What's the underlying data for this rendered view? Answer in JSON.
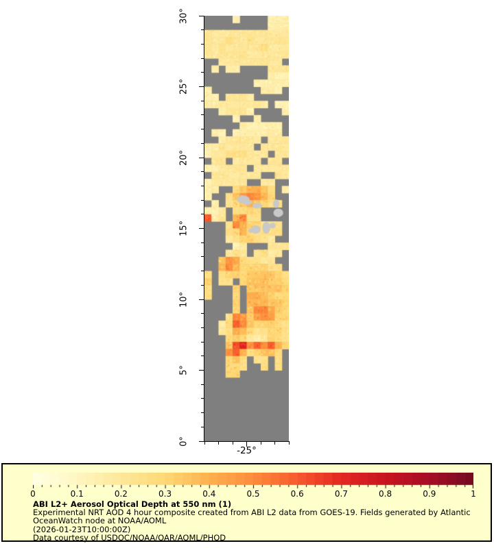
{
  "figure": {
    "background": "#ffffff"
  },
  "map_axes": {
    "lat_range": [
      0,
      30
    ],
    "lon_range": [
      -28,
      -22
    ],
    "lat_minor_step_deg": 1,
    "lon_minor_step_deg": 1,
    "lat_tick_labels": [
      {
        "lat": 30,
        "label": "30°"
      },
      {
        "lat": 25,
        "label": "25°"
      },
      {
        "lat": 20,
        "label": "20°"
      },
      {
        "lat": 15,
        "label": "15°"
      },
      {
        "lat": 10,
        "label": "10°"
      },
      {
        "lat": 5,
        "label": "5°"
      },
      {
        "lat": 0,
        "label": "0°"
      }
    ],
    "lon_tick_labels": [
      {
        "lon": -25,
        "label": "-25°"
      }
    ]
  },
  "chart_data": {
    "type": "heatmap",
    "title": "ABI L2+ Aerosol Optical Depth at 550 nm (1)",
    "quantity": "Aerosol Optical Depth at 550 nm",
    "lat_range": [
      0,
      30
    ],
    "lon_range": [
      -28,
      -22
    ],
    "no_data_color": "#7f7f7f",
    "land_color": "#c9c9c9",
    "colormap": {
      "stops": [
        [
          0.0,
          "#ffffe5"
        ],
        [
          0.1,
          "#fff7c0"
        ],
        [
          0.2,
          "#fee79a"
        ],
        [
          0.3,
          "#fed976"
        ],
        [
          0.4,
          "#fdb14e"
        ],
        [
          0.5,
          "#fd8c3c"
        ],
        [
          0.6,
          "#f75a2d"
        ],
        [
          0.7,
          "#e32722"
        ],
        [
          0.8,
          "#c81422"
        ],
        [
          0.9,
          "#a50d24"
        ],
        [
          1.0,
          "#720a21"
        ]
      ]
    },
    "colorbar": {
      "min": 0,
      "max": 1,
      "major_tick_labels": [
        "0",
        "0.1",
        "0.2",
        "0.3",
        "0.4",
        "0.5",
        "0.6",
        "0.7",
        "0.8",
        "0.9",
        "1"
      ],
      "minor_tick_step": 0.02
    },
    "aod_grid": {
      "comment": "AOD values on 0.5 deg cells; rows from lat 30 down to 0, cols from lon -28 to -22; null = no data (gray)",
      "lat_start": 30,
      "lat_step": -0.5,
      "lon_start": -28,
      "lon_step": 0.5,
      "values": [
        [
          null,
          null,
          null,
          null,
          0.15,
          null,
          null,
          null,
          null,
          0.15,
          0.15,
          0.15
        ],
        [
          null,
          null,
          null,
          null,
          null,
          null,
          null,
          null,
          null,
          0.15,
          0.15,
          0.15
        ],
        [
          0.2,
          0.2,
          0.2,
          0.2,
          0.2,
          0.2,
          0.2,
          0.2,
          0.2,
          0.2,
          0.2,
          0.2
        ],
        [
          0.2,
          0.2,
          0.2,
          0.25,
          0.2,
          0.2,
          0.25,
          0.2,
          0.2,
          0.2,
          0.2,
          0.2
        ],
        [
          0.2,
          0.2,
          0.25,
          0.2,
          0.2,
          0.2,
          0.2,
          0.2,
          0.25,
          0.2,
          0.2,
          0.2
        ],
        [
          0.2,
          0.2,
          0.2,
          0.2,
          0.2,
          0.25,
          0.2,
          0.2,
          0.2,
          0.2,
          0.2,
          0.2
        ],
        [
          null,
          null,
          0.2,
          0.2,
          0.2,
          0.2,
          0.2,
          0.2,
          0.2,
          0.2,
          0.2,
          null
        ],
        [
          null,
          0.15,
          null,
          0.15,
          0.15,
          null,
          null,
          null,
          null,
          0.2,
          0.2,
          0.2
        ],
        [
          null,
          null,
          null,
          null,
          null,
          null,
          null,
          null,
          null,
          0.15,
          0.15,
          0.15
        ],
        [
          null,
          null,
          null,
          null,
          null,
          null,
          null,
          0.15,
          0.15,
          0.15,
          0.15,
          0.15
        ],
        [
          0.15,
          null,
          null,
          null,
          null,
          null,
          null,
          null,
          0.15,
          0.15,
          0.15,
          null
        ],
        [
          0.15,
          0.15,
          null,
          0.2,
          0.2,
          0.2,
          0.2,
          null,
          null,
          null,
          null,
          null
        ],
        [
          0.15,
          0.15,
          0.2,
          0.2,
          0.2,
          0.2,
          0.2,
          0.2,
          0.15,
          null,
          0.15,
          0.15
        ],
        [
          null,
          null,
          0.15,
          0.2,
          0.2,
          0.2,
          0.15,
          null,
          null,
          null,
          null,
          0.15
        ],
        [
          null,
          null,
          null,
          null,
          0.15,
          null,
          null,
          0.15,
          null,
          null,
          null,
          null
        ],
        [
          null,
          null,
          null,
          null,
          null,
          0.15,
          0.15,
          0.15,
          0.15,
          0.15,
          0.15,
          null
        ],
        [
          null,
          0.15,
          0.15,
          null,
          0.15,
          0.15,
          0.15,
          0.15,
          0.15,
          0.15,
          0.15,
          null
        ],
        [
          null,
          null,
          0.15,
          0.2,
          0.2,
          0.2,
          0.2,
          0.2,
          null,
          0.2,
          0.2,
          0.2
        ],
        [
          0.15,
          0.15,
          0.2,
          0.2,
          0.2,
          0.2,
          0.2,
          null,
          0.2,
          0.2,
          0.2,
          0.2
        ],
        [
          0.15,
          0.2,
          0.2,
          0.25,
          0.25,
          0.25,
          0.2,
          0.2,
          0.2,
          null,
          0.2,
          0.2
        ],
        [
          null,
          0.2,
          0.2,
          null,
          0.2,
          0.2,
          0.2,
          0.2,
          null,
          0.2,
          0.2,
          null
        ],
        [
          0.15,
          0.15,
          0.2,
          0.2,
          0.2,
          0.2,
          null,
          0.2,
          0.2,
          0.2,
          0.2,
          0.2
        ],
        [
          null,
          0.2,
          0.2,
          0.2,
          0.2,
          0.2,
          0.2,
          0.2,
          null,
          null,
          0.2,
          0.2
        ],
        [
          0.15,
          0.2,
          0.2,
          0.2,
          0.2,
          0.2,
          null,
          null,
          0.2,
          0.2,
          null,
          null
        ],
        [
          0.15,
          0.15,
          null,
          null,
          0.3,
          0.35,
          0.4,
          0.4,
          0.35,
          0.25,
          null,
          0.15
        ],
        [
          0.15,
          null,
          null,
          0.25,
          0.35,
          0.45,
          0.5,
          0.45,
          0.4,
          0.3,
          null,
          null
        ],
        [
          null,
          0.15,
          null,
          0.2,
          0.3,
          0.35,
          0.4,
          0.35,
          0.3,
          0.25,
          0.25,
          null
        ],
        [
          0.15,
          0.15,
          0.2,
          null,
          0.25,
          0.25,
          0.3,
          0.25,
          null,
          null,
          null,
          null
        ],
        [
          0.6,
          0.15,
          0.2,
          null,
          0.4,
          0.5,
          0.25,
          0.25,
          null,
          null,
          null,
          null
        ],
        [
          null,
          null,
          null,
          0.25,
          0.5,
          0.4,
          0.3,
          0.3,
          0.25,
          0.25,
          0.25,
          null
        ],
        [
          null,
          null,
          null,
          0.25,
          0.3,
          0.4,
          0.3,
          0.25,
          0.25,
          0.25,
          0.25,
          null
        ],
        [
          null,
          null,
          null,
          0.2,
          0.25,
          0.3,
          0.3,
          0.25,
          0.25,
          0.2,
          null,
          null
        ],
        [
          null,
          null,
          null,
          null,
          0.15,
          0.2,
          null,
          null,
          null,
          0.2,
          0.2,
          0.2
        ],
        [
          null,
          null,
          null,
          0.2,
          0.25,
          0.2,
          null,
          0.2,
          0.25,
          0.2,
          0.2,
          null
        ],
        [
          null,
          null,
          0.35,
          0.45,
          0.4,
          0.3,
          0.25,
          0.25,
          0.2,
          0.2,
          null,
          null
        ],
        [
          null,
          null,
          0.4,
          0.5,
          0.4,
          0.3,
          0.3,
          0.3,
          0.3,
          0.25,
          0.25,
          null
        ],
        [
          0.25,
          null,
          0.25,
          0.3,
          0.3,
          0.3,
          0.35,
          0.35,
          0.35,
          0.35,
          0.3,
          0.25
        ],
        [
          0.3,
          null,
          0.25,
          0.25,
          null,
          0.3,
          0.35,
          0.35,
          0.35,
          0.35,
          0.35,
          0.3
        ],
        [
          0.25,
          null,
          null,
          null,
          0.3,
          null,
          0.35,
          0.35,
          0.35,
          0.35,
          0.35,
          0.3
        ],
        [
          0.25,
          null,
          null,
          null,
          0.3,
          null,
          0.4,
          0.4,
          0.35,
          0.35,
          0.3,
          0.3
        ],
        [
          null,
          null,
          null,
          null,
          0.3,
          null,
          0.4,
          0.4,
          0.4,
          0.35,
          0.35,
          0.3
        ],
        [
          null,
          null,
          null,
          null,
          0.3,
          null,
          0.35,
          0.5,
          0.5,
          0.4,
          0.35,
          0.3
        ],
        [
          null,
          null,
          null,
          0.25,
          0.5,
          0.45,
          0.35,
          0.45,
          0.5,
          0.45,
          0.3,
          0.3
        ],
        [
          null,
          null,
          0.2,
          0.3,
          0.6,
          0.5,
          0.35,
          0.3,
          0.3,
          0.3,
          0.3,
          0.25
        ],
        [
          null,
          null,
          0.2,
          0.25,
          0.4,
          0.35,
          0.3,
          0.25,
          0.25,
          0.3,
          0.3,
          0.25
        ],
        [
          null,
          null,
          null,
          0.3,
          0.35,
          0.3,
          0.2,
          0.15,
          0.2,
          0.3,
          0.3,
          0.25
        ],
        [
          null,
          null,
          null,
          0.35,
          0.6,
          0.7,
          0.5,
          0.6,
          0.5,
          0.6,
          0.4,
          0.3
        ],
        [
          null,
          null,
          null,
          0.5,
          0.6,
          0.4,
          0.25,
          0.3,
          0.35,
          0.35,
          0.3,
          null
        ],
        [
          null,
          null,
          null,
          0.3,
          0.35,
          0.25,
          null,
          0.25,
          0.25,
          null,
          0.25,
          null
        ],
        [
          null,
          null,
          null,
          0.3,
          0.3,
          0.25,
          null,
          null,
          0.25,
          null,
          0.25,
          null
        ],
        [
          null,
          null,
          null,
          0.3,
          0.3,
          null,
          null,
          null,
          null,
          null,
          null,
          null
        ],
        [
          null,
          null,
          null,
          null,
          null,
          null,
          null,
          null,
          null,
          null,
          null,
          null
        ],
        [
          null,
          null,
          null,
          null,
          null,
          null,
          null,
          null,
          null,
          null,
          null,
          null
        ],
        [
          null,
          null,
          null,
          null,
          null,
          null,
          null,
          null,
          null,
          null,
          null,
          null
        ],
        [
          null,
          null,
          null,
          null,
          null,
          null,
          null,
          null,
          null,
          null,
          null,
          null
        ],
        [
          null,
          null,
          null,
          null,
          null,
          null,
          null,
          null,
          null,
          null,
          null,
          null
        ],
        [
          null,
          null,
          null,
          null,
          null,
          null,
          null,
          null,
          null,
          null,
          null,
          null
        ],
        [
          null,
          null,
          null,
          null,
          null,
          null,
          null,
          null,
          null,
          null,
          null,
          null
        ],
        [
          null,
          null,
          null,
          null,
          null,
          null,
          null,
          null,
          null,
          null,
          null,
          null
        ],
        [
          null,
          null,
          null,
          null,
          null,
          null,
          null,
          null,
          null,
          null,
          null,
          null
        ]
      ]
    },
    "islands": [
      {
        "lat": 17.05,
        "lon": -25.25,
        "wdeg": 0.45,
        "hdeg": 0.28
      },
      {
        "lat": 16.85,
        "lon": -24.95,
        "wdeg": 0.3,
        "hdeg": 0.2
      },
      {
        "lat": 16.6,
        "lon": -24.25,
        "wdeg": 0.35,
        "hdeg": 0.2
      },
      {
        "lat": 16.75,
        "lon": -22.9,
        "wdeg": 0.22,
        "hdeg": 0.3
      },
      {
        "lat": 16.1,
        "lon": -22.75,
        "wdeg": 0.35,
        "hdeg": 0.3
      },
      {
        "lat": 15.2,
        "lon": -23.15,
        "wdeg": 0.2,
        "hdeg": 0.2
      },
      {
        "lat": 15.05,
        "lon": -23.6,
        "wdeg": 0.28,
        "hdeg": 0.42
      },
      {
        "lat": 14.92,
        "lon": -24.35,
        "wdeg": 0.33,
        "hdeg": 0.3
      },
      {
        "lat": 14.85,
        "lon": -24.7,
        "wdeg": 0.18,
        "hdeg": 0.15
      }
    ]
  },
  "legend": {
    "background": "#ffffcc",
    "title": "ABI L2+ Aerosol Optical Depth at 550 nm (1)",
    "description_lines": [
      "Experimental NRT AOD 4 hour composite created from ABI L2 data from GOES-19. Fields generated by Atlantic",
      "OceanWatch node at NOAA/AOML"
    ],
    "timestamp_line": "(2026-01-23T10:00:00Z)",
    "courtesy_line": "Data courtesy of USDOC/NOAA/OAR/AOML/PHOD"
  }
}
